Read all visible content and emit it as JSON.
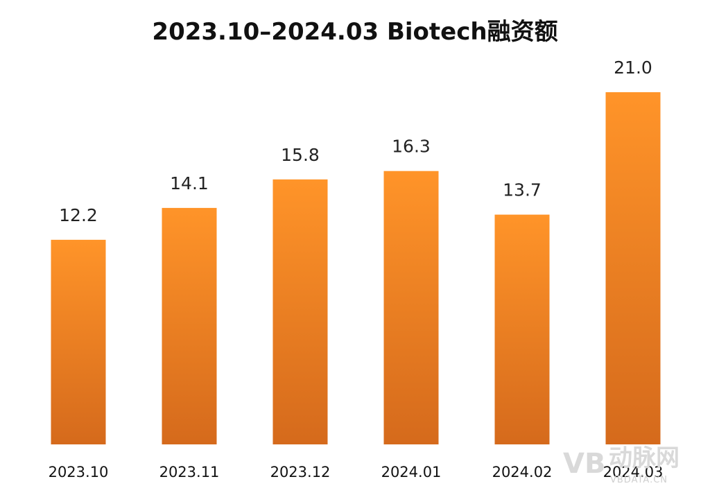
{
  "chart_data": {
    "type": "bar",
    "title": "2023.10–2024.03 Biotech融资额",
    "xlabel": "",
    "ylabel": "",
    "categories": [
      "2023.10",
      "2023.11",
      "2023.12",
      "2024.01",
      "2024.02",
      "2024.03"
    ],
    "values": [
      12.2,
      14.1,
      15.8,
      16.3,
      13.7,
      21.0
    ],
    "value_labels": [
      "12.2",
      "14.1",
      "15.8",
      "16.3",
      "13.7",
      "21.0"
    ],
    "ylim": [
      0,
      21.0
    ],
    "grid": false,
    "legend": "none",
    "colors": {
      "bar_top": "#FF9429",
      "bar_bottom": "#D56A1C",
      "text": "#111111"
    }
  },
  "watermark": {
    "logo": "VB",
    "name": "动脉网",
    "url": "VBDATA.CN"
  }
}
